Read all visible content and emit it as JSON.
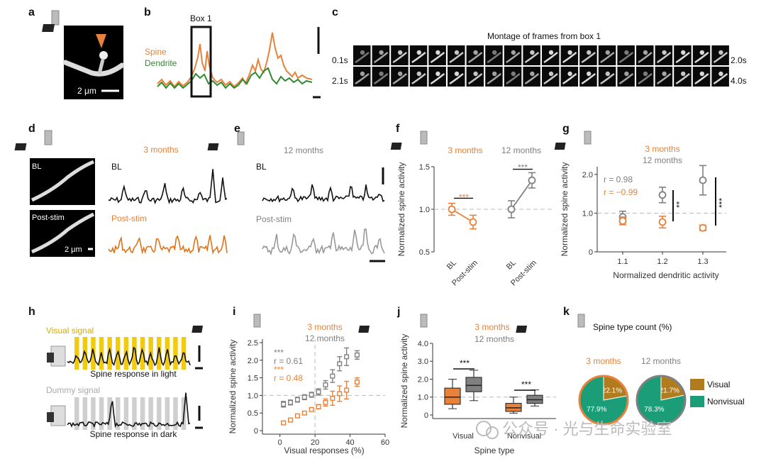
{
  "colors": {
    "orange": "#e8823a",
    "gray": "#808080",
    "green": "#2e8b2e",
    "tan": "#b07c1e",
    "teal": "#1b9e77",
    "yellow": "#f2cc0c",
    "black": "#111111"
  },
  "panels": {
    "a": {
      "letter": "a",
      "scale": "2 μm"
    },
    "b": {
      "letter": "b",
      "box": "Box 1",
      "spine": "Spine",
      "dendrite": "Dendrite"
    },
    "c": {
      "letter": "c",
      "title": "Montage of frames from box 1",
      "t1": "0.1s",
      "t2": "2.0s",
      "t3": "2.1s",
      "t4": "4.0s"
    },
    "d": {
      "letter": "d",
      "age": "3 months",
      "bl_img": "BL",
      "post_img": "Post-stim",
      "scale": "2 μm",
      "bl": "BL",
      "post": "Post-stim"
    },
    "e": {
      "letter": "e",
      "age": "12 months",
      "bl": "BL",
      "post": "Post-stim"
    },
    "f": {
      "letter": "f",
      "g3": "3 months",
      "g12": "12 months",
      "sig3": "***",
      "sig12": "***"
    },
    "g": {
      "letter": "g",
      "g3": "3 months",
      "g12": "12 months",
      "r12": "r = 0.98",
      "r3": "r = −0.99",
      "sig1": "**",
      "sig2": "***"
    },
    "h": {
      "letter": "h",
      "visual": "Visual signal",
      "light": "Spine response in light",
      "dummy": "Dummy signal",
      "dark": "Spine response in dark"
    },
    "i": {
      "letter": "i",
      "g3": "3 months",
      "g12": "12 months",
      "sig12": "***",
      "r12": "r = 0.61",
      "sig3": "***",
      "r3": "r = 0.48"
    },
    "j": {
      "letter": "j",
      "g3": "3 months",
      "g12": "12 months",
      "sig1": "***",
      "sig2": "***"
    },
    "k": {
      "letter": "k",
      "title": "Spine type count (%)",
      "g3": "3 months",
      "g12": "12 months",
      "l1": "Visual",
      "l2": "Nonvisual"
    }
  },
  "watermark": "公众号 · 光与生命实验室",
  "chart_data": [
    {
      "panel": "f",
      "type": "line",
      "ylabel": "Normalized spine activity",
      "ylim": [
        0.5,
        1.5
      ],
      "yticks": [
        "0.5",
        "1.0",
        "1.5"
      ],
      "categories": [
        "BL",
        "Post-stim"
      ],
      "series": [
        {
          "name": "3 months",
          "values": [
            1.0,
            0.85
          ],
          "err": [
            0.07,
            0.08
          ],
          "color": "#e8823a"
        },
        {
          "name": "12 months",
          "values": [
            1.0,
            1.34
          ],
          "err": [
            0.1,
            0.09
          ],
          "color": "#808080"
        }
      ]
    },
    {
      "panel": "g",
      "type": "scatter",
      "xlabel": "Normalized dendritic activity",
      "ylabel": "Normalized spine activity",
      "ylim": [
        0,
        2.2
      ],
      "xticks": [
        "1.1",
        "1.2",
        "1.3"
      ],
      "yticks": [
        "0",
        "1.0",
        "2.0"
      ],
      "series": [
        {
          "name": "12 months",
          "x": [
            1.1,
            1.2,
            1.3
          ],
          "values": [
            0.9,
            1.47,
            1.85
          ],
          "err": [
            0.15,
            0.2,
            0.38
          ],
          "color": "#808080"
        },
        {
          "name": "3 months",
          "x": [
            1.1,
            1.2,
            1.3
          ],
          "values": [
            0.8,
            0.77,
            0.62
          ],
          "err": [
            0.1,
            0.15,
            0.07
          ],
          "color": "#e8823a"
        }
      ]
    },
    {
      "panel": "i",
      "type": "scatter",
      "xlabel": "Visual responses (%)",
      "ylabel": "Normalized spine activity",
      "xlim": [
        -10,
        60
      ],
      "ylim": [
        -0.1,
        2.6
      ],
      "xticks": [
        "0",
        "20",
        "40",
        "60"
      ],
      "yticks": [
        "0",
        "0.5",
        "1.0",
        "1.5",
        "2.0",
        "2.5"
      ],
      "series": [
        {
          "name": "12 months",
          "x": [
            2,
            6,
            10,
            14,
            18,
            22,
            26,
            30,
            34,
            38,
            44
          ],
          "values": [
            0.75,
            0.8,
            0.88,
            0.95,
            1.02,
            1.1,
            1.3,
            1.55,
            1.9,
            2.1,
            2.15
          ],
          "err": [
            0.08,
            0.07,
            0.07,
            0.07,
            0.07,
            0.09,
            0.12,
            0.18,
            0.2,
            0.25,
            0.12
          ],
          "color": "#808080"
        },
        {
          "name": "3 months",
          "x": [
            2,
            6,
            10,
            14,
            18,
            22,
            26,
            30,
            34,
            38,
            44
          ],
          "values": [
            0.22,
            0.3,
            0.42,
            0.5,
            0.6,
            0.68,
            0.8,
            0.92,
            1.05,
            1.15,
            1.38
          ],
          "err": [
            0.04,
            0.04,
            0.05,
            0.05,
            0.05,
            0.06,
            0.1,
            0.2,
            0.22,
            0.25,
            0.12
          ],
          "color": "#e8823a"
        }
      ]
    },
    {
      "panel": "j",
      "type": "box",
      "xlabel": "Spine type",
      "ylabel": "Normalized spine activity",
      "ylim": [
        -0.2,
        4.0
      ],
      "categories": [
        "Visual",
        "Nonvisual"
      ],
      "yticks": [
        "0",
        "1.0",
        "2.0",
        "3.0",
        "4.0"
      ],
      "series": [
        {
          "name": "3 months",
          "color": "#e8823a",
          "boxes": [
            {
              "min": 0.35,
              "q1": 0.6,
              "med": 1.0,
              "q3": 1.5,
              "max": 2.0
            },
            {
              "min": 0.1,
              "q1": 0.2,
              "med": 0.4,
              "q3": 0.65,
              "max": 1.0
            }
          ]
        },
        {
          "name": "12 months",
          "color": "#808080",
          "boxes": [
            {
              "min": 0.8,
              "q1": 1.3,
              "med": 1.65,
              "q3": 2.1,
              "max": 2.5
            },
            {
              "min": 0.5,
              "q1": 0.65,
              "med": 0.85,
              "q3": 1.1,
              "max": 1.4
            }
          ]
        }
      ]
    },
    {
      "panel": "k",
      "type": "pie",
      "title": "Spine type count (%)",
      "series": [
        {
          "name": "3 months",
          "slices": [
            {
              "label": "Visual",
              "value": 22.1,
              "text": "22.1%"
            },
            {
              "label": "Nonvisual",
              "value": 77.9,
              "text": "77.9%"
            }
          ],
          "ring": "#e8823a"
        },
        {
          "name": "12 months",
          "slices": [
            {
              "label": "Visual",
              "value": 21.7,
              "text": "21.7%"
            },
            {
              "label": "Nonvisual",
              "value": 78.3,
              "text": "78.3%"
            }
          ],
          "ring": "#808080"
        }
      ]
    }
  ]
}
